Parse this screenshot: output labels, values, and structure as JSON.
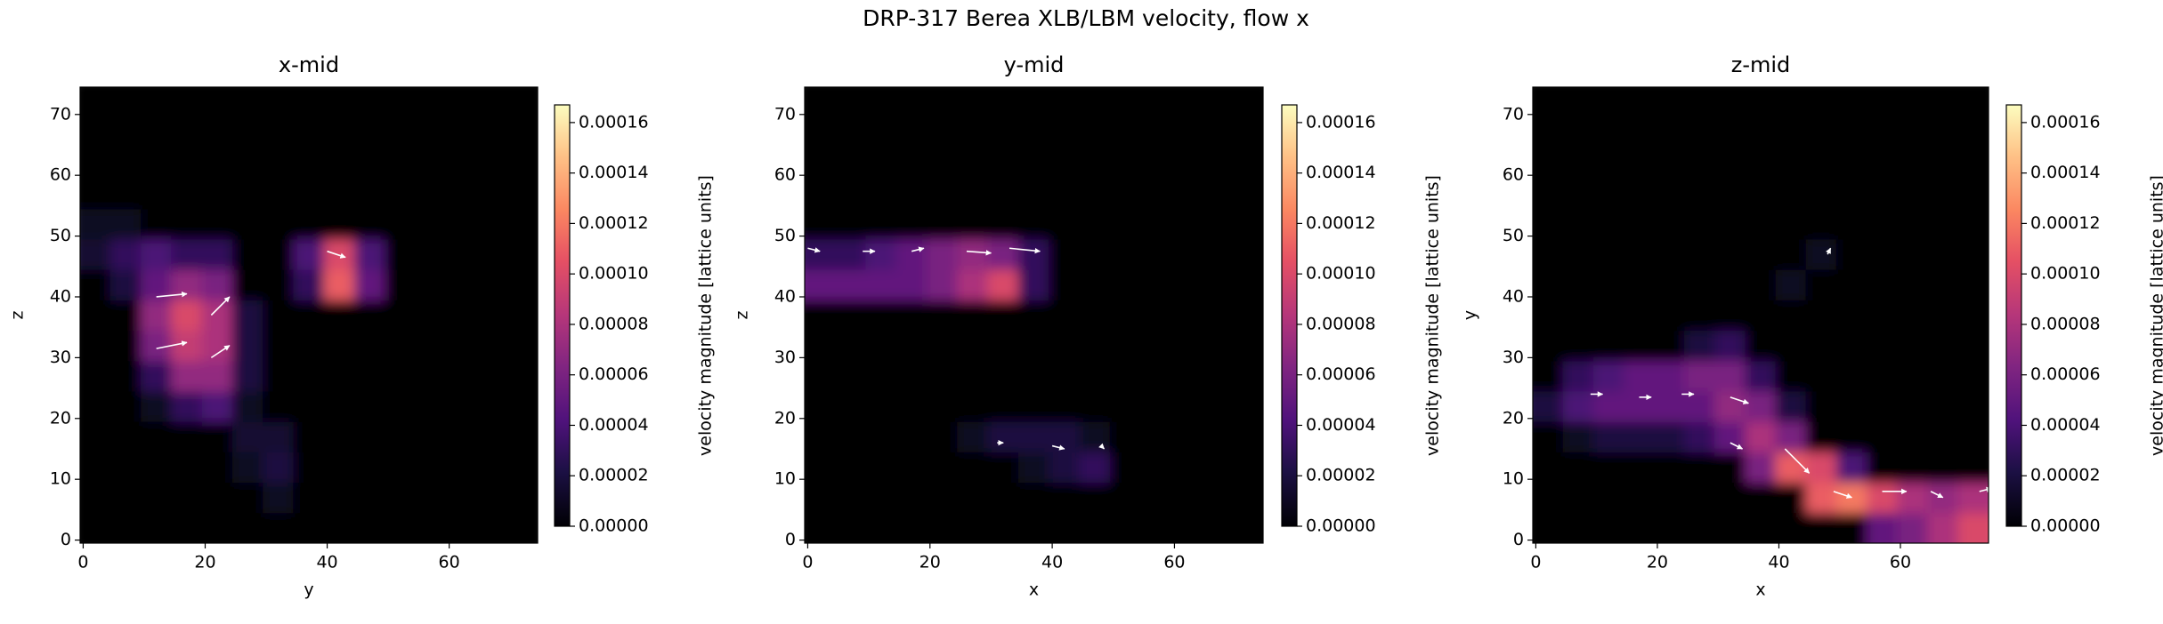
{
  "title": "DRP-317 Berea XLB/LBM velocity, flow x",
  "chart_data": [
    {
      "type": "heatmap",
      "title": "x-mid",
      "xlabel": "y",
      "ylabel": "z",
      "colormap": "magma",
      "xlim": [
        -0.5,
        74.5
      ],
      "ylim": [
        -0.5,
        74.5
      ],
      "xticks": [
        0,
        20,
        40,
        60
      ],
      "yticks": [
        0,
        10,
        20,
        30,
        40,
        50,
        60,
        70
      ],
      "clim": [
        0,
        0.000167
      ],
      "cticks": [
        {
          "value": 0,
          "label": "0.00000"
        },
        {
          "value": 2e-05,
          "label": "0.00002"
        },
        {
          "value": 4e-05,
          "label": "0.00004"
        },
        {
          "value": 6e-05,
          "label": "0.00006"
        },
        {
          "value": 8e-05,
          "label": "0.00008"
        },
        {
          "value": 0.0001,
          "label": "0.00010"
        },
        {
          "value": 0.00012,
          "label": "0.00012"
        },
        {
          "value": 0.00014,
          "label": "0.00014"
        },
        {
          "value": 0.00016,
          "label": "0.00016"
        }
      ],
      "colorbar_label": "velocity magnitude [lattice units]",
      "values": [
        [
          0,
          0,
          0,
          0,
          0,
          0,
          0,
          0,
          0,
          0,
          0,
          0,
          0,
          0,
          0
        ],
        [
          0,
          0,
          0,
          0,
          0,
          0,
          1e-05,
          0,
          0,
          0,
          0,
          0,
          0,
          0,
          0
        ],
        [
          0,
          0,
          0,
          0,
          0,
          1e-05,
          2e-05,
          0,
          0,
          0,
          0,
          0,
          0,
          0,
          0
        ],
        [
          0,
          0,
          0,
          0,
          0,
          1.5e-05,
          1.5e-05,
          0,
          0,
          0,
          0,
          0,
          0,
          0,
          0
        ],
        [
          0,
          0,
          1e-05,
          3e-05,
          4e-05,
          1e-05,
          0,
          0,
          0,
          0,
          0,
          0,
          0,
          0,
          0
        ],
        [
          0,
          0,
          3e-05,
          7e-05,
          7e-05,
          2e-05,
          0,
          0,
          0,
          0,
          0,
          0,
          0,
          0,
          0
        ],
        [
          0,
          0,
          6e-05,
          9e-05,
          8e-05,
          2e-05,
          0,
          0,
          0,
          0,
          0,
          0,
          0,
          0,
          0
        ],
        [
          0,
          0,
          7e-05,
          0.0001,
          8e-05,
          2e-05,
          0,
          0,
          0,
          0,
          0,
          0,
          0,
          0,
          0
        ],
        [
          0,
          2e-05,
          5e-05,
          7e-05,
          6e-05,
          0,
          0,
          3e-05,
          0.00011,
          5e-05,
          0,
          0,
          0,
          0,
          0
        ],
        [
          1.5e-05,
          3e-05,
          4e-05,
          3e-05,
          3e-05,
          0,
          0,
          4e-05,
          0.0001,
          4e-05,
          0,
          0,
          0,
          0,
          0
        ],
        [
          1e-05,
          1e-05,
          0,
          0,
          0,
          0,
          0,
          0,
          0,
          0,
          0,
          0,
          0,
          0,
          0
        ],
        [
          0,
          0,
          0,
          0,
          0,
          0,
          0,
          0,
          0,
          0,
          0,
          0,
          0,
          0,
          0
        ],
        [
          0,
          0,
          0,
          0,
          0,
          0,
          0,
          0,
          0,
          0,
          0,
          0,
          0,
          0,
          0
        ],
        [
          0,
          0,
          0,
          0,
          0,
          0,
          0,
          0,
          0,
          0,
          0,
          0,
          0,
          0,
          0
        ],
        [
          0,
          0,
          0,
          0,
          0,
          0,
          0,
          0,
          0,
          0,
          0,
          0,
          0,
          0,
          0
        ]
      ],
      "quiver": {
        "x": [
          12,
          12,
          21,
          21,
          40
        ],
        "y": [
          40,
          31.5,
          37,
          30,
          47.5
        ],
        "u": [
          5,
          5,
          3,
          3,
          3
        ],
        "v": [
          0.5,
          1,
          3,
          2,
          -1
        ]
      }
    },
    {
      "type": "heatmap",
      "title": "y-mid",
      "xlabel": "x",
      "ylabel": "z",
      "colormap": "magma",
      "xlim": [
        -0.5,
        74.5
      ],
      "ylim": [
        -0.5,
        74.5
      ],
      "xticks": [
        0,
        20,
        40,
        60
      ],
      "yticks": [
        0,
        10,
        20,
        30,
        40,
        50,
        60,
        70
      ],
      "clim": [
        0,
        0.000167
      ],
      "cticks": [
        {
          "value": 0,
          "label": "0.00000"
        },
        {
          "value": 2e-05,
          "label": "0.00002"
        },
        {
          "value": 4e-05,
          "label": "0.00004"
        },
        {
          "value": 6e-05,
          "label": "0.00006"
        },
        {
          "value": 8e-05,
          "label": "0.00008"
        },
        {
          "value": 0.0001,
          "label": "0.00010"
        },
        {
          "value": 0.00012,
          "label": "0.00012"
        },
        {
          "value": 0.00014,
          "label": "0.00014"
        },
        {
          "value": 0.00016,
          "label": "0.00016"
        }
      ],
      "colorbar_label": "velocity magnitude [lattice units]",
      "values": [
        [
          0,
          0,
          0,
          0,
          0,
          0,
          0,
          0,
          0,
          0,
          0,
          0,
          0,
          0,
          0
        ],
        [
          0,
          0,
          0,
          0,
          0,
          0,
          0,
          0,
          0,
          0,
          0,
          0,
          0,
          0,
          0
        ],
        [
          0,
          0,
          0,
          0,
          0,
          0,
          0,
          1e-05,
          2e-05,
          3e-05,
          0,
          0,
          0,
          0,
          0
        ],
        [
          0,
          0,
          0,
          0,
          0,
          1e-05,
          2e-05,
          2e-05,
          2e-05,
          1e-05,
          0,
          0,
          0,
          0,
          0
        ],
        [
          0,
          0,
          0,
          0,
          0,
          0,
          0,
          0,
          0,
          0,
          0,
          0,
          0,
          0,
          0
        ],
        [
          0,
          0,
          0,
          0,
          0,
          0,
          0,
          0,
          0,
          0,
          0,
          0,
          0,
          0,
          0
        ],
        [
          0,
          0,
          0,
          0,
          0,
          0,
          0,
          0,
          0,
          0,
          0,
          0,
          0,
          0,
          0
        ],
        [
          0,
          0,
          0,
          0,
          0,
          0,
          0,
          0,
          0,
          0,
          0,
          0,
          0,
          0,
          0
        ],
        [
          5e-05,
          5e-05,
          5e-05,
          5e-05,
          6e-05,
          8e-05,
          0.0001,
          3e-05,
          0,
          0,
          0,
          0,
          0,
          0,
          0
        ],
        [
          3e-05,
          3e-05,
          4e-05,
          5e-05,
          6e-05,
          7e-05,
          6e-05,
          3e-05,
          0,
          0,
          0,
          0,
          0,
          0,
          0
        ],
        [
          0,
          0,
          0,
          0,
          0,
          0,
          0,
          0,
          0,
          0,
          0,
          0,
          0,
          0,
          0
        ],
        [
          0,
          0,
          0,
          0,
          0,
          0,
          0,
          0,
          0,
          0,
          0,
          0,
          0,
          0,
          0
        ],
        [
          0,
          0,
          0,
          0,
          0,
          0,
          0,
          0,
          0,
          0,
          0,
          0,
          0,
          0,
          0
        ],
        [
          0,
          0,
          0,
          0,
          0,
          0,
          0,
          0,
          0,
          0,
          0,
          0,
          0,
          0,
          0
        ],
        [
          0,
          0,
          0,
          0,
          0,
          0,
          0,
          0,
          0,
          0,
          0,
          0,
          0,
          0,
          0
        ]
      ],
      "quiver": {
        "x": [
          0,
          9,
          17,
          26,
          33,
          31,
          40,
          48
        ],
        "y": [
          48,
          47.5,
          47.5,
          47.5,
          48,
          16,
          15.5,
          15.5
        ],
        "u": [
          2,
          2,
          2,
          4,
          5,
          1,
          2,
          0.5
        ],
        "v": [
          -0.5,
          0,
          0.5,
          -0.3,
          -0.5,
          0,
          -0.5,
          -0.5
        ]
      }
    },
    {
      "type": "heatmap",
      "title": "z-mid",
      "xlabel": "x",
      "ylabel": "y",
      "colormap": "magma",
      "xlim": [
        -0.5,
        74.5
      ],
      "ylim": [
        -0.5,
        74.5
      ],
      "xticks": [
        0,
        20,
        40,
        60
      ],
      "yticks": [
        0,
        10,
        20,
        30,
        40,
        50,
        60,
        70
      ],
      "clim": [
        0,
        0.000167
      ],
      "cticks": [
        {
          "value": 0,
          "label": "0.00000"
        },
        {
          "value": 2e-05,
          "label": "0.00002"
        },
        {
          "value": 4e-05,
          "label": "0.00004"
        },
        {
          "value": 6e-05,
          "label": "0.00006"
        },
        {
          "value": 8e-05,
          "label": "0.00008"
        },
        {
          "value": 0.0001,
          "label": "0.00010"
        },
        {
          "value": 0.00012,
          "label": "0.00012"
        },
        {
          "value": 0.00014,
          "label": "0.00014"
        },
        {
          "value": 0.00016,
          "label": "0.00016"
        }
      ],
      "colorbar_label": "velocity magnitude [lattice units]",
      "values": [
        [
          0,
          0,
          0,
          0,
          0,
          0,
          0,
          0,
          0,
          0,
          0,
          5e-05,
          6e-05,
          8e-05,
          0.0001
        ],
        [
          0,
          0,
          0,
          0,
          0,
          0,
          0,
          0,
          0,
          0.00011,
          0.00012,
          0.0001,
          8e-05,
          7e-05,
          8e-05
        ],
        [
          0,
          0,
          0,
          0,
          0,
          0,
          0,
          6e-05,
          0.00011,
          0.0001,
          4e-05,
          0,
          0,
          0,
          0
        ],
        [
          0,
          1e-05,
          2e-05,
          2e-05,
          2e-05,
          3e-05,
          5e-05,
          8e-05,
          6e-05,
          0,
          0,
          0,
          0,
          0,
          0
        ],
        [
          2e-05,
          4e-05,
          5e-05,
          5e-05,
          5e-05,
          5e-05,
          7e-05,
          6e-05,
          2e-05,
          0,
          0,
          0,
          0,
          0,
          0
        ],
        [
          0,
          3e-05,
          4e-05,
          5e-05,
          5e-05,
          6e-05,
          6e-05,
          3e-05,
          0,
          0,
          0,
          0,
          0,
          0,
          0
        ],
        [
          0,
          0,
          0,
          0,
          0,
          2e-05,
          3e-05,
          0,
          0,
          0,
          0,
          0,
          0,
          0,
          0
        ],
        [
          0,
          0,
          0,
          0,
          0,
          0,
          0,
          0,
          0,
          0,
          0,
          0,
          0,
          0,
          0
        ],
        [
          0,
          0,
          0,
          0,
          0,
          0,
          0,
          0,
          1e-05,
          0,
          0,
          0,
          0,
          0,
          0
        ],
        [
          0,
          0,
          0,
          0,
          0,
          0,
          0,
          0,
          0,
          1e-05,
          0,
          0,
          0,
          0,
          0
        ],
        [
          0,
          0,
          0,
          0,
          0,
          0,
          0,
          0,
          0,
          0,
          0,
          0,
          0,
          0,
          0
        ],
        [
          0,
          0,
          0,
          0,
          0,
          0,
          0,
          0,
          0,
          0,
          0,
          0,
          0,
          0,
          0
        ],
        [
          0,
          0,
          0,
          0,
          0,
          0,
          0,
          0,
          0,
          0,
          0,
          0,
          0,
          0,
          0
        ],
        [
          0,
          0,
          0,
          0,
          0,
          0,
          0,
          0,
          0,
          0,
          0,
          0,
          0,
          0,
          0
        ],
        [
          0,
          0,
          0,
          0,
          0,
          0,
          0,
          0,
          0,
          0,
          0,
          0,
          0,
          0,
          0
        ]
      ],
      "quiver": {
        "x": [
          9,
          17,
          24,
          32,
          32,
          41,
          49,
          57,
          65,
          73,
          48
        ],
        "y": [
          24,
          23.5,
          24,
          23.5,
          16,
          15,
          8,
          8,
          8,
          8,
          47
        ],
        "u": [
          2,
          2,
          2,
          3,
          2,
          4,
          3,
          4,
          2,
          2,
          0.5
        ],
        "v": [
          0,
          0,
          0,
          -1,
          -1,
          -4,
          -1,
          0,
          -1,
          0.5,
          1
        ]
      }
    }
  ]
}
